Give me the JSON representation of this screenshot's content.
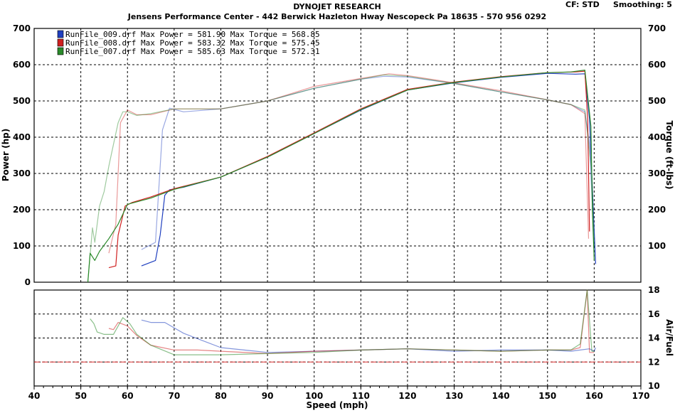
{
  "header": {
    "title": "DYNOJET RESEARCH",
    "subtitle": "Jensens Performance Center - 442 Berwick Hazleton Hway Nescopeck Pa 18635 - 570 956 0292",
    "cf": "CF: STD",
    "smoothing": "Smoothing: 5"
  },
  "legend": [
    {
      "file": "RunFile_009.drf",
      "text": "RunFile_009.drf Max Power = 581.90    Max Torque = 568.85",
      "color": "#1f3fbf"
    },
    {
      "file": "RunFile_008.drf",
      "text": "RunFile_008.drf Max Power = 583.32    Max Torque = 575.45",
      "color": "#d02020"
    },
    {
      "file": "RunFile_007.drf",
      "text": "RunFile_007.drf Max Power = 585.63    Max Torque = 572.31",
      "color": "#2a8a2a"
    }
  ],
  "chart_data": [
    {
      "type": "line",
      "name": "power-torque",
      "xlabel": "Speed (mph)",
      "ylabel": "Power (hp)",
      "y2label": "Torque (ft-lbs)",
      "xlim": [
        40,
        170
      ],
      "ylim": [
        0,
        700
      ],
      "y2lim": [
        0,
        700
      ],
      "xticks": [
        40,
        50,
        60,
        70,
        80,
        90,
        100,
        110,
        120,
        130,
        140,
        150,
        160,
        170
      ],
      "yticks": [
        0,
        100,
        200,
        300,
        400,
        500,
        600,
        700
      ],
      "y2ticks": [
        100,
        200,
        300,
        400,
        500,
        600,
        700
      ],
      "grid": true,
      "series": [
        {
          "name": "RunFile_009.drf",
          "color": "#1f3fbf",
          "kind": "power",
          "x": [
            63,
            66,
            67,
            68,
            69,
            72,
            80,
            90,
            100,
            110,
            120,
            130,
            140,
            150,
            156,
            158,
            159,
            159.8,
            160.3
          ],
          "y": [
            45,
            60,
            130,
            240,
            255,
            262,
            290,
            345,
            410,
            475,
            530,
            550,
            565,
            576,
            574,
            575,
            450,
            200,
            50
          ]
        },
        {
          "name": "RunFile_009.drf",
          "color": "#1f3fbf",
          "kind": "torque",
          "x": [
            63,
            66,
            67.5,
            69,
            72,
            80,
            90,
            100,
            110,
            115,
            120,
            130,
            140,
            150,
            155,
            158,
            159,
            160
          ],
          "y": [
            90,
            110,
            420,
            480,
            470,
            478,
            500,
            535,
            560,
            568,
            566,
            548,
            525,
            503,
            490,
            470,
            380,
            100
          ]
        },
        {
          "name": "RunFile_008.drf",
          "color": "#d02020",
          "kind": "power",
          "x": [
            56,
            57.5,
            58,
            59.5,
            61,
            65,
            70,
            80,
            90,
            100,
            110,
            120,
            130,
            140,
            150,
            156,
            158,
            158.6,
            159
          ],
          "y": [
            40,
            45,
            130,
            210,
            220,
            235,
            258,
            290,
            347,
            412,
            478,
            532,
            552,
            567,
            578,
            580,
            582,
            450,
            140
          ]
        },
        {
          "name": "RunFile_008.drf",
          "color": "#d02020",
          "kind": "torque",
          "x": [
            56,
            57.5,
            58.5,
            60,
            62,
            65,
            70,
            80,
            90,
            100,
            110,
            116,
            120,
            130,
            140,
            150,
            155,
            158,
            158.8
          ],
          "y": [
            80,
            160,
            440,
            475,
            462,
            462,
            478,
            478,
            500,
            540,
            562,
            575,
            570,
            550,
            528,
            503,
            490,
            465,
            120
          ]
        },
        {
          "name": "RunFile_007.drf",
          "color": "#2a8a2a",
          "kind": "power",
          "x": [
            51.5,
            52,
            53,
            54,
            56,
            58,
            60,
            65,
            70,
            80,
            90,
            100,
            110,
            120,
            130,
            140,
            150,
            155,
            158,
            159.3,
            159.6,
            160
          ],
          "y": [
            0,
            80,
            60,
            85,
            120,
            160,
            215,
            232,
            256,
            290,
            345,
            410,
            476,
            530,
            551,
            566,
            578,
            580,
            585,
            430,
            200,
            60
          ]
        },
        {
          "name": "RunFile_007.drf",
          "color": "#2a8a2a",
          "kind": "torque",
          "x": [
            51.5,
            52.5,
            53,
            54,
            55,
            56,
            57,
            58,
            59,
            60,
            62,
            65,
            70,
            80,
            90,
            100,
            110,
            115,
            120,
            130,
            140,
            150,
            155,
            158,
            159.5,
            160
          ],
          "y": [
            0,
            150,
            110,
            210,
            250,
            320,
            380,
            440,
            470,
            470,
            460,
            465,
            478,
            478,
            500,
            535,
            560,
            572,
            568,
            548,
            525,
            503,
            490,
            475,
            300,
            100
          ]
        }
      ]
    },
    {
      "type": "line",
      "name": "air-fuel",
      "xlabel": "Speed (mph)",
      "y2label": "Air/Fuel",
      "xlim": [
        40,
        170
      ],
      "ylim": [
        10,
        18
      ],
      "y2ticks": [
        10,
        12,
        14,
        16,
        18
      ],
      "reference_line": 12,
      "grid": true,
      "series": [
        {
          "name": "RunFile_009.drf",
          "color": "#1f3fbf",
          "x": [
            63,
            65,
            68,
            72,
            76,
            80,
            85,
            90,
            100,
            110,
            120,
            130,
            140,
            150,
            155,
            157,
            159,
            160,
            160.3
          ],
          "y": [
            15.5,
            15.3,
            15.3,
            14.4,
            13.8,
            13.2,
            13.0,
            12.8,
            12.9,
            13.0,
            13.1,
            12.9,
            13.0,
            13.0,
            12.9,
            13.0,
            13.1,
            12.9,
            13.2
          ]
        },
        {
          "name": "RunFile_008.drf",
          "color": "#d02020",
          "x": [
            56,
            57,
            58,
            60,
            62,
            65,
            70,
            75,
            80,
            90,
            100,
            110,
            120,
            130,
            140,
            150,
            155,
            157,
            158.5,
            159,
            160
          ],
          "y": [
            14.8,
            14.7,
            15.3,
            15.0,
            14.2,
            13.4,
            13.0,
            13.0,
            12.9,
            12.7,
            12.9,
            13.0,
            13.1,
            13.0,
            12.9,
            13.0,
            13.0,
            13.2,
            18,
            12.8,
            12.8
          ]
        },
        {
          "name": "RunFile_007.drf",
          "color": "#2a8a2a",
          "x": [
            52,
            52.8,
            53.5,
            55,
            57,
            59,
            60.5,
            62,
            65,
            70,
            75,
            80,
            90,
            100,
            110,
            120,
            130,
            140,
            150,
            155,
            157,
            158.5,
            159.5,
            160
          ],
          "y": [
            15.6,
            15.2,
            14.5,
            14.3,
            14.3,
            15.7,
            15.2,
            14.3,
            13.4,
            12.6,
            12.6,
            12.6,
            12.7,
            12.8,
            13.0,
            13.1,
            13.0,
            12.9,
            13.0,
            13.0,
            13.5,
            18,
            12.9,
            12.9
          ]
        }
      ]
    }
  ]
}
